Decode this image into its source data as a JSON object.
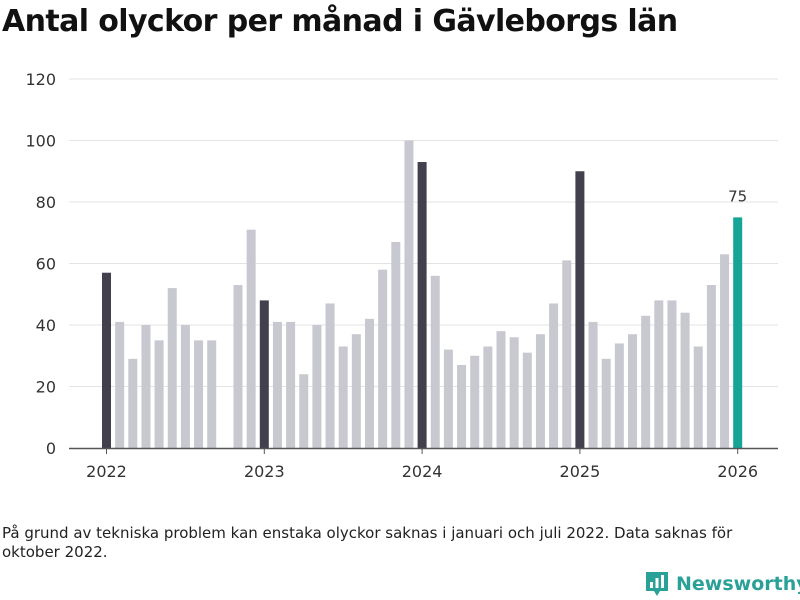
{
  "title": "Antal olyckor per månad i Gävleborgs län",
  "footnote": "På grund av tekniska problem kan enstaka olyckor saknas i januari och juli 2022. Data saknas för oktober 2022.",
  "brand": {
    "name": "Newsworthy",
    "icon": "newsworthy-logo-icon",
    "color": "#2aa198"
  },
  "colors": {
    "january": "#41404c",
    "other": "#c8c8d0",
    "latest": "#14a597",
    "grid": "#e3e3e3",
    "axis": "#555555"
  },
  "chart_data": {
    "type": "bar",
    "title": "Antal olyckor per månad i Gävleborgs län",
    "xlabel": "",
    "ylabel": "",
    "ylim": [
      0,
      120
    ],
    "yticks": [
      0,
      20,
      40,
      60,
      80,
      100,
      120
    ],
    "xticks": [
      {
        "label": "2022",
        "index": 0
      },
      {
        "label": "2023",
        "index": 12
      },
      {
        "label": "2024",
        "index": 24
      },
      {
        "label": "2025",
        "index": 36
      },
      {
        "label": "2026",
        "index": 48
      }
    ],
    "grid": true,
    "missing": [
      "2022-10"
    ],
    "values": [
      57,
      41,
      29,
      40,
      35,
      52,
      40,
      35,
      35,
      null,
      53,
      71,
      48,
      41,
      41,
      24,
      40,
      47,
      33,
      37,
      42,
      58,
      67,
      100,
      93,
      56,
      32,
      27,
      30,
      33,
      38,
      36,
      31,
      37,
      47,
      61,
      90,
      41,
      29,
      34,
      37,
      43,
      48,
      48,
      44,
      33,
      53,
      63,
      75
    ],
    "highlight": {
      "index": 48,
      "label": "75"
    }
  }
}
